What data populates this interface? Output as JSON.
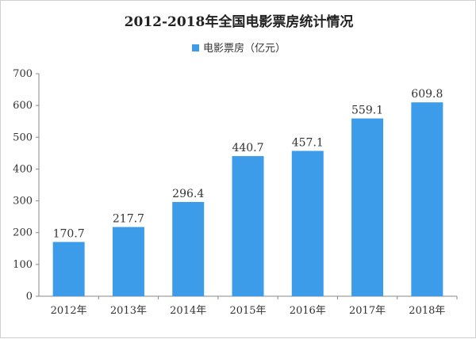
{
  "chart_data": {
    "type": "bar",
    "title": "2012-2018年全国电影票房统计情况",
    "categories": [
      "2012年",
      "2013年",
      "2014年",
      "2015年",
      "2016年",
      "2017年",
      "2018年"
    ],
    "series": [
      {
        "name": "电影票房（亿元）",
        "values": [
          170.7,
          217.7,
          296.4,
          440.7,
          457.1,
          559.1,
          609.8
        ],
        "color": "#3d9ce9"
      }
    ],
    "value_labels": [
      "170.7",
      "217.7",
      "296.4",
      "440.7",
      "457.1",
      "559.1",
      "609.8"
    ],
    "yticks": [
      "0",
      "100",
      "200",
      "300",
      "400",
      "500",
      "600",
      "700"
    ],
    "ylim": [
      0,
      700
    ],
    "grid": false,
    "legend_position": "top-center"
  }
}
